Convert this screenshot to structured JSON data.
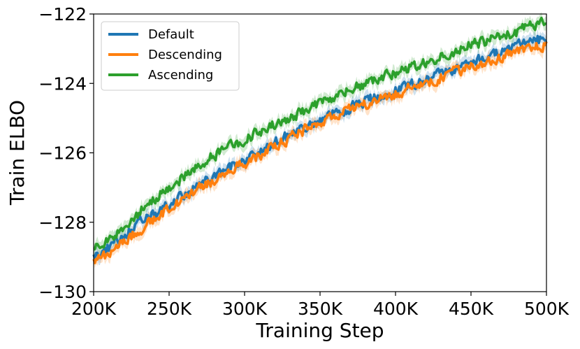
{
  "chart_data": {
    "type": "line",
    "xlabel": "Training Step",
    "ylabel": "Train ELBO",
    "xlim": [
      200000,
      500000
    ],
    "ylim": [
      -130,
      -122
    ],
    "x_ticks": [
      {
        "value": 200000,
        "label": "200K"
      },
      {
        "value": 250000,
        "label": "250K"
      },
      {
        "value": 300000,
        "label": "300K"
      },
      {
        "value": 350000,
        "label": "350K"
      },
      {
        "value": 400000,
        "label": "400K"
      },
      {
        "value": 450000,
        "label": "450K"
      },
      {
        "value": 500000,
        "label": "500K"
      }
    ],
    "y_ticks": [
      {
        "value": -122,
        "label": "−122"
      },
      {
        "value": -124,
        "label": "−124"
      },
      {
        "value": -126,
        "label": "−126"
      },
      {
        "value": -128,
        "label": "−128"
      },
      {
        "value": -130,
        "label": "−130"
      }
    ],
    "grid": false,
    "legend_position": "top-left",
    "x": [
      200000,
      225000,
      250000,
      275000,
      300000,
      325000,
      350000,
      375000,
      400000,
      425000,
      450000,
      475000,
      500000
    ],
    "series": [
      {
        "name": "Default",
        "color": "#1f77b4",
        "values": [
          -129.0,
          -128.2,
          -127.5,
          -126.8,
          -126.2,
          -125.6,
          -125.1,
          -124.6,
          -124.2,
          -123.8,
          -123.4,
          -123.0,
          -122.7
        ]
      },
      {
        "name": "Descending",
        "color": "#ff7f0e",
        "values": [
          -129.1,
          -128.4,
          -127.6,
          -126.9,
          -126.3,
          -125.7,
          -125.1,
          -124.7,
          -124.3,
          -123.9,
          -123.5,
          -123.2,
          -122.9
        ]
      },
      {
        "name": "Ascending",
        "color": "#2ca02c",
        "values": [
          -128.8,
          -127.9,
          -127.0,
          -126.2,
          -125.6,
          -125.1,
          -124.6,
          -124.1,
          -123.7,
          -123.3,
          -122.9,
          -122.6,
          -122.2
        ]
      }
    ]
  }
}
